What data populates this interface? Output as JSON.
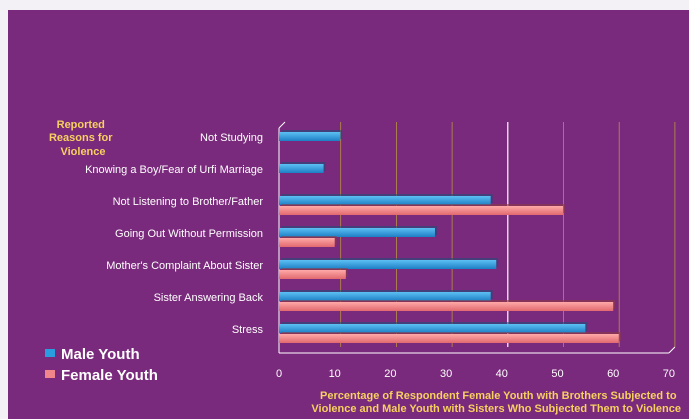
{
  "chart_data": {
    "type": "bar",
    "orientation": "horizontal",
    "categories": [
      "Not Studying",
      "Knowing a Boy/Fear of Urfi Marriage",
      "Not Listening to Brother/Father",
      "Going Out Without Permission",
      "Mother's Complaint About Sister",
      "Sister Answering Back",
      "Stress"
    ],
    "series": [
      {
        "name": "Male Youth",
        "values": [
          11,
          8,
          38,
          28,
          39,
          38,
          55
        ]
      },
      {
        "name": "Female Youth",
        "values": [
          0,
          0,
          51,
          10,
          12,
          60,
          61
        ]
      }
    ],
    "xlabel_lines": [
      "Percentage of Respondent Female Youth with Brothers Subjected to",
      "Violence and Male Youth with Sisters Who Subjected Them to Violence"
    ],
    "category_axis_title_lines": [
      "Reported",
      "Reasons for",
      "Violence"
    ],
    "xlim": [
      0,
      70
    ],
    "xticks": [
      0,
      10,
      20,
      30,
      40,
      50,
      60,
      70
    ],
    "grid": true,
    "legend_position": "bottom-left",
    "colors": {
      "male": "#2a9ce0",
      "female": "#f0868a",
      "background": "#7a2a7c",
      "text_accent": "#f6d060",
      "grid": "#b8923f"
    }
  }
}
